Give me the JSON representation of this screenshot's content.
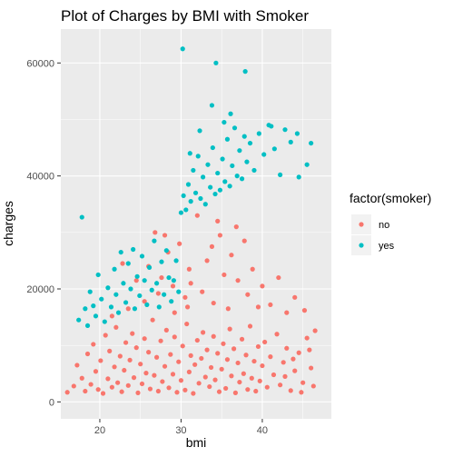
{
  "chart_data": {
    "type": "scatter",
    "title": "Plot of Charges by BMI with Smoker",
    "xlabel": "bmi",
    "ylabel": "charges",
    "xlim": [
      15.2,
      48.5
    ],
    "ylim": [
      -3000,
      66000
    ],
    "x_ticks": [
      20,
      30,
      40
    ],
    "x_tick_labels": [
      "20",
      "30",
      "40"
    ],
    "y_ticks": [
      0,
      20000,
      40000,
      60000
    ],
    "y_tick_labels": [
      "0",
      "20000",
      "40000",
      "60000"
    ],
    "grid": true,
    "panel_background": "#ebebeb",
    "grid_color": "#ffffff",
    "legend": {
      "title": "factor(smoker)",
      "position": "right",
      "entries": [
        {
          "label": "no",
          "color": "#F8766D"
        },
        {
          "label": "yes",
          "color": "#00BFC4"
        }
      ]
    },
    "series": [
      {
        "name": "no",
        "color": "#F8766D",
        "points": [
          [
            16.0,
            1700
          ],
          [
            16.8,
            2800
          ],
          [
            17.2,
            6500
          ],
          [
            17.8,
            4200
          ],
          [
            18.2,
            1900
          ],
          [
            18.5,
            8500
          ],
          [
            18.9,
            3100
          ],
          [
            19.2,
            10200
          ],
          [
            19.5,
            5400
          ],
          [
            19.8,
            2200
          ],
          [
            20.1,
            7300
          ],
          [
            20.4,
            1500
          ],
          [
            20.7,
            11800
          ],
          [
            21.0,
            4100
          ],
          [
            21.2,
            9000
          ],
          [
            21.5,
            2600
          ],
          [
            21.8,
            6200
          ],
          [
            22.0,
            13200
          ],
          [
            22.2,
            3400
          ],
          [
            22.5,
            8100
          ],
          [
            22.7,
            1800
          ],
          [
            23.0,
            5600
          ],
          [
            23.2,
            10500
          ],
          [
            23.5,
            2900
          ],
          [
            23.7,
            7400
          ],
          [
            24.0,
            12100
          ],
          [
            24.2,
            4300
          ],
          [
            24.5,
            9600
          ],
          [
            24.7,
            1600
          ],
          [
            25.0,
            6700
          ],
          [
            25.2,
            3200
          ],
          [
            25.5,
            11200
          ],
          [
            25.7,
            5100
          ],
          [
            26.0,
            8800
          ],
          [
            26.2,
            2300
          ],
          [
            26.5,
            14500
          ],
          [
            26.7,
            4700
          ],
          [
            27.0,
            7900
          ],
          [
            27.2,
            1900
          ],
          [
            27.5,
            10800
          ],
          [
            27.7,
            3600
          ],
          [
            28.0,
            6300
          ],
          [
            28.2,
            12700
          ],
          [
            28.5,
            2500
          ],
          [
            28.7,
            8400
          ],
          [
            29.0,
            4900
          ],
          [
            29.2,
            11500
          ],
          [
            29.5,
            1700
          ],
          [
            29.7,
            7100
          ],
          [
            30.0,
            3800
          ],
          [
            30.2,
            9900
          ],
          [
            30.5,
            2100
          ],
          [
            30.7,
            13800
          ],
          [
            31.0,
            5300
          ],
          [
            31.2,
            8200
          ],
          [
            31.5,
            1500
          ],
          [
            31.7,
            6600
          ],
          [
            32.0,
            10900
          ],
          [
            32.2,
            3300
          ],
          [
            32.5,
            7700
          ],
          [
            32.7,
            12300
          ],
          [
            33.0,
            4400
          ],
          [
            33.2,
            9200
          ],
          [
            33.5,
            2700
          ],
          [
            33.7,
            6100
          ],
          [
            34.0,
            11600
          ],
          [
            34.2,
            3900
          ],
          [
            34.5,
            8600
          ],
          [
            34.7,
            1800
          ],
          [
            35.0,
            5800
          ],
          [
            35.2,
            10300
          ],
          [
            35.5,
            2400
          ],
          [
            35.7,
            7500
          ],
          [
            36.0,
            12900
          ],
          [
            36.2,
            4600
          ],
          [
            36.5,
            9400
          ],
          [
            36.7,
            1600
          ],
          [
            37.0,
            6900
          ],
          [
            37.2,
            3500
          ],
          [
            37.5,
            11100
          ],
          [
            37.7,
            5000
          ],
          [
            38.0,
            8300
          ],
          [
            38.2,
            2200
          ],
          [
            38.5,
            13400
          ],
          [
            38.7,
            4200
          ],
          [
            39.0,
            7200
          ],
          [
            39.2,
            1900
          ],
          [
            39.5,
            9800
          ],
          [
            39.7,
            3700
          ],
          [
            40.0,
            6400
          ],
          [
            40.3,
            10600
          ],
          [
            40.6,
            2600
          ],
          [
            41.0,
            8000
          ],
          [
            41.4,
            4800
          ],
          [
            41.8,
            12000
          ],
          [
            42.2,
            3000
          ],
          [
            42.6,
            7000
          ],
          [
            43.0,
            9500
          ],
          [
            43.5,
            2000
          ],
          [
            44.0,
            5500
          ],
          [
            44.5,
            8700
          ],
          [
            45.0,
            3400
          ],
          [
            45.5,
            11300
          ],
          [
            46.0,
            6000
          ],
          [
            46.3,
            2800
          ],
          [
            46.5,
            12600
          ],
          [
            45.8,
            9200
          ],
          [
            44.8,
            1700
          ],
          [
            43.8,
            7600
          ],
          [
            42.8,
            4500
          ],
          [
            24.5,
            21500
          ],
          [
            26.0,
            24000
          ],
          [
            26.8,
            30000
          ],
          [
            27.6,
            22000
          ],
          [
            28.4,
            26500
          ],
          [
            29.0,
            20500
          ],
          [
            29.8,
            28000
          ],
          [
            30.5,
            18500
          ],
          [
            31.2,
            21000
          ],
          [
            32.0,
            33000
          ],
          [
            32.6,
            19500
          ],
          [
            33.2,
            25000
          ],
          [
            34.0,
            17500
          ],
          [
            34.8,
            29500
          ],
          [
            35.3,
            22500
          ],
          [
            35.8,
            16500
          ],
          [
            36.2,
            26000
          ],
          [
            37.0,
            21500
          ],
          [
            37.8,
            28500
          ],
          [
            38.2,
            19000
          ],
          [
            38.8,
            23500
          ],
          [
            39.5,
            16800
          ],
          [
            40.0,
            20500
          ],
          [
            41.0,
            17200
          ],
          [
            42.0,
            22000
          ],
          [
            43.0,
            15800
          ],
          [
            44.0,
            18500
          ],
          [
            45.2,
            16200
          ],
          [
            31.0,
            23500
          ],
          [
            34.5,
            32000
          ],
          [
            36.8,
            31000
          ],
          [
            22.8,
            24500
          ],
          [
            25.5,
            17800
          ],
          [
            27.2,
            19200
          ],
          [
            29.2,
            15800
          ],
          [
            30.8,
            16800
          ],
          [
            28.0,
            29500
          ],
          [
            33.8,
            27500
          ],
          [
            23.5,
            16500
          ],
          [
            21.5,
            15200
          ]
        ]
      },
      {
        "name": "yes",
        "color": "#00BFC4",
        "points": [
          [
            17.4,
            14500
          ],
          [
            17.8,
            32700
          ],
          [
            18.2,
            16500
          ],
          [
            18.5,
            13500
          ],
          [
            18.8,
            19500
          ],
          [
            19.2,
            17000
          ],
          [
            19.5,
            15200
          ],
          [
            19.8,
            22500
          ],
          [
            20.2,
            18200
          ],
          [
            20.6,
            14200
          ],
          [
            21.0,
            20200
          ],
          [
            21.4,
            16800
          ],
          [
            21.8,
            23500
          ],
          [
            22.0,
            19000
          ],
          [
            22.3,
            15800
          ],
          [
            22.6,
            26500
          ],
          [
            22.9,
            21000
          ],
          [
            23.2,
            17600
          ],
          [
            23.5,
            24500
          ],
          [
            23.8,
            20000
          ],
          [
            24.1,
            27000
          ],
          [
            24.3,
            16500
          ],
          [
            24.6,
            22200
          ],
          [
            24.9,
            18800
          ],
          [
            25.2,
            25800
          ],
          [
            25.5,
            21500
          ],
          [
            25.8,
            17200
          ],
          [
            26.1,
            23800
          ],
          [
            26.4,
            19800
          ],
          [
            26.7,
            28500
          ],
          [
            27.0,
            21000
          ],
          [
            27.3,
            16800
          ],
          [
            27.6,
            24800
          ],
          [
            27.9,
            19000
          ],
          [
            28.2,
            26800
          ],
          [
            28.5,
            22000
          ],
          [
            28.8,
            17800
          ],
          [
            29.1,
            21500
          ],
          [
            29.4,
            25000
          ],
          [
            29.7,
            19500
          ],
          [
            30.0,
            33500
          ],
          [
            30.3,
            36500
          ],
          [
            30.6,
            34000
          ],
          [
            30.9,
            38500
          ],
          [
            31.2,
            35500
          ],
          [
            31.5,
            41000
          ],
          [
            31.8,
            37000
          ],
          [
            32.1,
            43500
          ],
          [
            32.4,
            36000
          ],
          [
            32.7,
            39800
          ],
          [
            33.0,
            35000
          ],
          [
            33.3,
            42000
          ],
          [
            33.6,
            38000
          ],
          [
            33.9,
            45000
          ],
          [
            34.2,
            36800
          ],
          [
            34.5,
            40500
          ],
          [
            34.8,
            37500
          ],
          [
            35.1,
            43000
          ],
          [
            35.4,
            39000
          ],
          [
            35.7,
            46500
          ],
          [
            36.0,
            38200
          ],
          [
            36.3,
            41800
          ],
          [
            36.6,
            48500
          ],
          [
            36.9,
            40000
          ],
          [
            37.2,
            44500
          ],
          [
            37.5,
            39500
          ],
          [
            37.8,
            47000
          ],
          [
            38.1,
            42500
          ],
          [
            38.5,
            45800
          ],
          [
            39.0,
            41000
          ],
          [
            39.6,
            47500
          ],
          [
            40.2,
            43800
          ],
          [
            40.8,
            49000
          ],
          [
            41.5,
            44800
          ],
          [
            42.2,
            40200
          ],
          [
            42.8,
            48200
          ],
          [
            43.5,
            46000
          ],
          [
            44.5,
            39800
          ],
          [
            45.5,
            42000
          ],
          [
            46.0,
            45800
          ],
          [
            30.2,
            62500
          ],
          [
            34.3,
            60000
          ],
          [
            37.9,
            58500
          ],
          [
            33.8,
            52500
          ],
          [
            35.3,
            49500
          ],
          [
            32.3,
            48000
          ],
          [
            36.1,
            51000
          ],
          [
            41.1,
            48800
          ],
          [
            44.3,
            47500
          ],
          [
            31.1,
            44000
          ]
        ]
      }
    ]
  }
}
